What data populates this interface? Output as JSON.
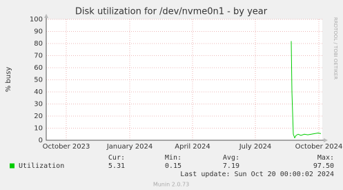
{
  "chart_data": {
    "type": "line",
    "title": "Disk utilization for /dev/nvme0n1 - by year",
    "ylabel": "% busy",
    "watermark": "RRDTOOL / TOBI OETIKER",
    "ylim": [
      0,
      100
    ],
    "yticks": [
      0,
      10,
      20,
      30,
      40,
      50,
      60,
      70,
      80,
      90,
      100
    ],
    "xlim": [
      "2023-09-02",
      "2024-10-06"
    ],
    "xticks": [
      {
        "value": "2023-10-01",
        "label": "October 2023"
      },
      {
        "value": "2024-01-01",
        "label": "January 2024"
      },
      {
        "value": "2024-04-01",
        "label": "April 2024"
      },
      {
        "value": "2024-07-01",
        "label": "July 2024"
      },
      {
        "value": "2024-10-01",
        "label": "October 2024"
      }
    ],
    "grid": true,
    "series": [
      {
        "name": "Utilization",
        "color": "#00cc00",
        "x": [
          "2024-08-22",
          "2024-08-23",
          "2024-08-25",
          "2024-08-27",
          "2024-08-29",
          "2024-09-01",
          "2024-09-05",
          "2024-09-10",
          "2024-09-15",
          "2024-09-20",
          "2024-09-25",
          "2024-09-30",
          "2024-10-04"
        ],
        "values": [
          82,
          40,
          5,
          2,
          4,
          5,
          4,
          5,
          4.5,
          5,
          5.5,
          6,
          5.5
        ]
      }
    ],
    "summary": {
      "headers": [
        "Cur:",
        "Min:",
        "Avg:",
        "Max:"
      ],
      "rows": [
        {
          "name": "Utilization",
          "values": [
            "5.31",
            "0.15",
            "7.19",
            "97.50"
          ]
        }
      ]
    },
    "last_update": "Last update: Sun Oct 20 00:00:02 2024",
    "footer": "Munin 2.0.73"
  }
}
